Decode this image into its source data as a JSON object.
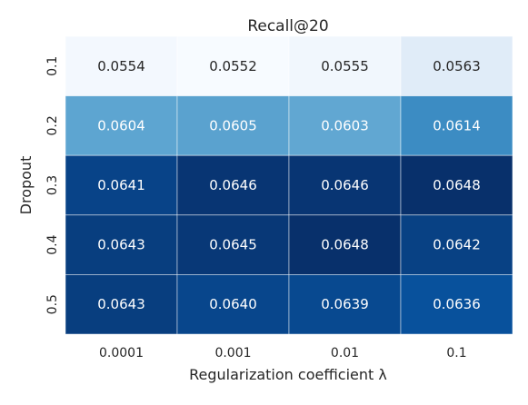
{
  "chart_data": {
    "type": "heatmap",
    "title": "Recall@20",
    "xlabel": "Regularization coefficient λ",
    "ylabel": "Dropout",
    "x_categories": [
      "0.0001",
      "0.001",
      "0.01",
      "0.1"
    ],
    "y_categories": [
      "0.1",
      "0.2",
      "0.3",
      "0.4",
      "0.5"
    ],
    "values": [
      [
        0.0554,
        0.0552,
        0.0555,
        0.0563
      ],
      [
        0.0604,
        0.0605,
        0.0603,
        0.0614
      ],
      [
        0.0641,
        0.0646,
        0.0646,
        0.0648
      ],
      [
        0.0643,
        0.0645,
        0.0648,
        0.0642
      ],
      [
        0.0643,
        0.064,
        0.0639,
        0.0636
      ]
    ],
    "labels": [
      [
        "0.0554",
        "0.0552",
        "0.0555",
        "0.0563"
      ],
      [
        "0.0604",
        "0.0605",
        "0.0603",
        "0.0614"
      ],
      [
        "0.0641",
        "0.0646",
        "0.0646",
        "0.0648"
      ],
      [
        "0.0643",
        "0.0645",
        "0.0648",
        "0.0642"
      ],
      [
        "0.0643",
        "0.0640",
        "0.0639",
        "0.0636"
      ]
    ],
    "colormap": "Blues",
    "colorbar": false
  }
}
